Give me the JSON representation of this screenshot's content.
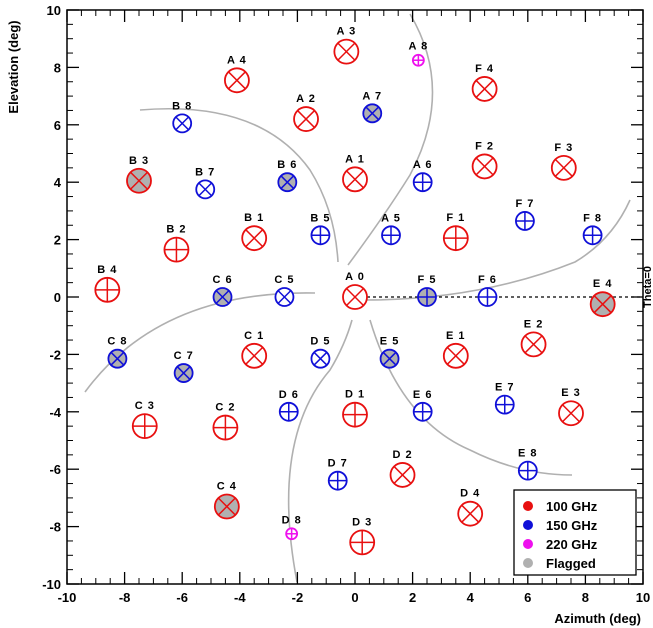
{
  "chart_data": {
    "type": "scatter",
    "xlabel": "Azimuth (deg)",
    "ylabel": "Elevation (deg)",
    "xlim": [
      -10,
      10
    ],
    "ylim": [
      -10,
      10
    ],
    "x_ticks": [
      -10,
      -8,
      -6,
      -4,
      -2,
      0,
      2,
      4,
      6,
      8,
      10
    ],
    "y_ticks": [
      -10,
      -8,
      -6,
      -4,
      -2,
      0,
      2,
      4,
      6,
      8,
      10
    ],
    "grid": false,
    "legend_position": "bottom-right",
    "colors": {
      "100 GHz": "#e81010",
      "150 GHz": "#1010d8",
      "220 GHz": "#ee10ee",
      "Flagged": "#b0b0b0",
      "arcs": "#b0b0b0"
    },
    "legend": [
      {
        "label": "100 GHz",
        "color": "#e81010"
      },
      {
        "label": "150 GHz",
        "color": "#1010d8"
      },
      {
        "label": "220 GHz",
        "color": "#ee10ee"
      },
      {
        "label": "Flagged",
        "color": "#b0b0b0"
      }
    ],
    "cut_label": "Theta=0",
    "reference_line": {
      "y": 0,
      "x_from": 0,
      "x_to": 10,
      "style": "dashed"
    },
    "feeds": [
      {
        "label": "A 0",
        "x": 0.0,
        "y": 0.0,
        "band": "100 GHz",
        "flagged": false
      },
      {
        "label": "A 1",
        "x": 0.0,
        "y": 4.1,
        "band": "100 GHz",
        "flagged": false
      },
      {
        "label": "A 2",
        "x": -1.7,
        "y": 6.2,
        "band": "100 GHz",
        "flagged": false
      },
      {
        "label": "A 3",
        "x": -0.3,
        "y": 8.55,
        "band": "100 GHz",
        "flagged": false
      },
      {
        "label": "A 4",
        "x": -4.1,
        "y": 7.55,
        "band": "100 GHz",
        "flagged": false
      },
      {
        "label": "A 5",
        "x": 1.25,
        "y": 2.15,
        "band": "150 GHz",
        "flagged": false
      },
      {
        "label": "A 6",
        "x": 2.35,
        "y": 4.0,
        "band": "150 GHz",
        "flagged": false
      },
      {
        "label": "A 7",
        "x": 0.6,
        "y": 6.4,
        "band": "150 GHz",
        "flagged": true
      },
      {
        "label": "A 8",
        "x": 2.2,
        "y": 8.25,
        "band": "220 GHz",
        "flagged": false
      },
      {
        "label": "B 1",
        "x": -3.5,
        "y": 2.05,
        "band": "100 GHz",
        "flagged": false
      },
      {
        "label": "B 2",
        "x": -6.2,
        "y": 1.65,
        "band": "100 GHz",
        "flagged": false
      },
      {
        "label": "B 3",
        "x": -7.5,
        "y": 4.05,
        "band": "100 GHz",
        "flagged": true
      },
      {
        "label": "B 4",
        "x": -8.6,
        "y": 0.25,
        "band": "100 GHz",
        "flagged": false
      },
      {
        "label": "B 5",
        "x": -1.2,
        "y": 2.15,
        "band": "150 GHz",
        "flagged": false
      },
      {
        "label": "B 6",
        "x": -2.35,
        "y": 4.0,
        "band": "150 GHz",
        "flagged": true
      },
      {
        "label": "B 7",
        "x": -5.2,
        "y": 3.75,
        "band": "150 GHz",
        "flagged": false
      },
      {
        "label": "B 8",
        "x": -6.0,
        "y": 6.05,
        "band": "150 GHz",
        "flagged": false
      },
      {
        "label": "C 1",
        "x": -3.5,
        "y": -2.05,
        "band": "100 GHz",
        "flagged": false
      },
      {
        "label": "C 2",
        "x": -4.5,
        "y": -4.55,
        "band": "100 GHz",
        "flagged": false
      },
      {
        "label": "C 3",
        "x": -7.3,
        "y": -4.5,
        "band": "100 GHz",
        "flagged": false
      },
      {
        "label": "C 4",
        "x": -4.45,
        "y": -7.3,
        "band": "100 GHz",
        "flagged": true
      },
      {
        "label": "C 5",
        "x": -2.45,
        "y": 0.0,
        "band": "150 GHz",
        "flagged": false
      },
      {
        "label": "C 6",
        "x": -4.6,
        "y": 0.0,
        "band": "150 GHz",
        "flagged": true
      },
      {
        "label": "C 7",
        "x": -5.95,
        "y": -2.65,
        "band": "150 GHz",
        "flagged": true
      },
      {
        "label": "C 8",
        "x": -8.25,
        "y": -2.15,
        "band": "150 GHz",
        "flagged": true
      },
      {
        "label": "D 1",
        "x": 0.0,
        "y": -4.1,
        "band": "100 GHz",
        "flagged": false
      },
      {
        "label": "D 2",
        "x": 1.65,
        "y": -6.2,
        "band": "100 GHz",
        "flagged": false
      },
      {
        "label": "D 3",
        "x": 0.25,
        "y": -8.55,
        "band": "100 GHz",
        "flagged": false
      },
      {
        "label": "D 4",
        "x": 4.0,
        "y": -7.55,
        "band": "100 GHz",
        "flagged": false
      },
      {
        "label": "D 5",
        "x": -1.2,
        "y": -2.15,
        "band": "150 GHz",
        "flagged": false
      },
      {
        "label": "D 6",
        "x": -2.3,
        "y": -4.0,
        "band": "150 GHz",
        "flagged": false
      },
      {
        "label": "D 7",
        "x": -0.6,
        "y": -6.4,
        "band": "150 GHz",
        "flagged": false
      },
      {
        "label": "D 8",
        "x": -2.2,
        "y": -8.25,
        "band": "220 GHz",
        "flagged": false
      },
      {
        "label": "E 1",
        "x": 3.5,
        "y": -2.05,
        "band": "100 GHz",
        "flagged": false
      },
      {
        "label": "E 2",
        "x": 6.2,
        "y": -1.65,
        "band": "100 GHz",
        "flagged": false
      },
      {
        "label": "E 3",
        "x": 7.5,
        "y": -4.05,
        "band": "100 GHz",
        "flagged": false
      },
      {
        "label": "E 4",
        "x": 8.6,
        "y": -0.25,
        "band": "100 GHz",
        "flagged": true
      },
      {
        "label": "E 5",
        "x": 1.2,
        "y": -2.15,
        "band": "150 GHz",
        "flagged": true
      },
      {
        "label": "E 6",
        "x": 2.35,
        "y": -4.0,
        "band": "150 GHz",
        "flagged": false
      },
      {
        "label": "E 7",
        "x": 5.2,
        "y": -3.75,
        "band": "150 GHz",
        "flagged": false
      },
      {
        "label": "E 8",
        "x": 6.0,
        "y": -6.05,
        "band": "150 GHz",
        "flagged": false
      },
      {
        "label": "F 1",
        "x": 3.5,
        "y": 2.05,
        "band": "100 GHz",
        "flagged": false
      },
      {
        "label": "F 2",
        "x": 4.5,
        "y": 4.55,
        "band": "100 GHz",
        "flagged": false
      },
      {
        "label": "F 3",
        "x": 7.25,
        "y": 4.5,
        "band": "100 GHz",
        "flagged": false
      },
      {
        "label": "F 4",
        "x": 4.5,
        "y": 7.25,
        "band": "100 GHz",
        "flagged": false
      },
      {
        "label": "F 5",
        "x": 2.5,
        "y": 0.0,
        "band": "150 GHz",
        "flagged": true
      },
      {
        "label": "F 6",
        "x": 4.6,
        "y": 0.0,
        "band": "150 GHz",
        "flagged": false
      },
      {
        "label": "F 7",
        "x": 5.9,
        "y": 2.65,
        "band": "150 GHz",
        "flagged": false
      },
      {
        "label": "F 8",
        "x": 8.25,
        "y": 2.15,
        "band": "150 GHz",
        "flagged": false
      }
    ]
  }
}
